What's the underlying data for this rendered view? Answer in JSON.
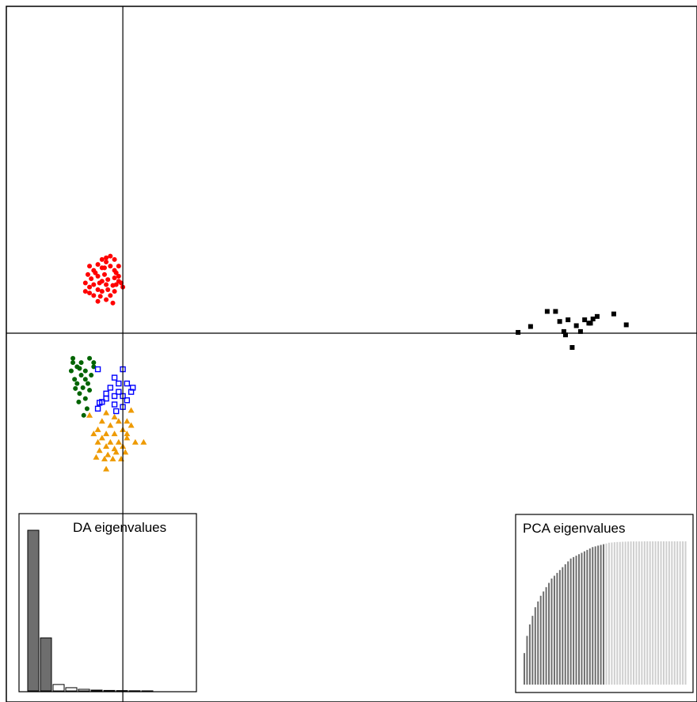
{
  "chart_data": {
    "type": "scatter",
    "title": "",
    "xlabel": "",
    "ylabel": "",
    "xlim": [
      -1.4,
      6.9
    ],
    "ylim": [
      -4.4,
      3.9
    ],
    "axes_cross": [
      0,
      0
    ],
    "colors": {
      "red": "#ff0000",
      "black": "#000000",
      "green": "#006400",
      "blue": "#0000ff",
      "orange": "#ee9a00"
    },
    "groups": [
      {
        "color": "red",
        "marker": "circle",
        "points": [
          [
            -0.4,
            0.8
          ],
          [
            -0.35,
            0.75
          ],
          [
            -0.3,
            0.82
          ],
          [
            -0.25,
            0.78
          ],
          [
            -0.2,
            0.85
          ],
          [
            -0.15,
            0.8
          ],
          [
            -0.1,
            0.75
          ],
          [
            -0.05,
            0.8
          ],
          [
            -0.42,
            0.7
          ],
          [
            -0.38,
            0.65
          ],
          [
            -0.3,
            0.68
          ],
          [
            -0.22,
            0.7
          ],
          [
            -0.18,
            0.64
          ],
          [
            -0.1,
            0.66
          ],
          [
            -0.05,
            0.62
          ],
          [
            -0.35,
            0.58
          ],
          [
            -0.28,
            0.6
          ],
          [
            -0.2,
            0.58
          ],
          [
            -0.12,
            0.57
          ],
          [
            -0.45,
            0.6
          ],
          [
            -0.4,
            0.55
          ],
          [
            -0.3,
            0.52
          ],
          [
            -0.25,
            0.5
          ],
          [
            -0.18,
            0.52
          ],
          [
            -0.1,
            0.5
          ],
          [
            -0.2,
            0.9
          ],
          [
            -0.15,
            0.92
          ],
          [
            -0.25,
            0.88
          ],
          [
            -0.1,
            0.88
          ],
          [
            -0.08,
            0.72
          ],
          [
            -0.35,
            0.45
          ],
          [
            -0.27,
            0.44
          ],
          [
            -0.2,
            0.4
          ],
          [
            -0.4,
            0.48
          ],
          [
            -0.15,
            0.45
          ],
          [
            -0.3,
            0.38
          ],
          [
            -0.45,
            0.5
          ],
          [
            -0.02,
            0.6
          ],
          [
            -0.05,
            0.68
          ],
          [
            0.0,
            0.55
          ],
          [
            -0.22,
            0.78
          ],
          [
            -0.33,
            0.72
          ],
          [
            -0.12,
            0.36
          ],
          [
            -0.25,
            0.62
          ],
          [
            -0.08,
            0.58
          ]
        ]
      },
      {
        "color": "black",
        "marker": "square",
        "points": [
          [
            5.1,
            0.26
          ],
          [
            5.2,
            0.26
          ],
          [
            5.25,
            0.14
          ],
          [
            5.35,
            0.16
          ],
          [
            5.45,
            0.09
          ],
          [
            5.55,
            0.16
          ],
          [
            5.65,
            0.17
          ],
          [
            5.7,
            0.2
          ],
          [
            5.6,
            0.12
          ],
          [
            5.3,
            0.02
          ],
          [
            5.5,
            0.02
          ],
          [
            5.9,
            0.23
          ],
          [
            6.05,
            0.1
          ],
          [
            4.9,
            0.08
          ],
          [
            4.75,
            0.01
          ],
          [
            5.4,
            -0.17
          ],
          [
            5.32,
            -0.02
          ],
          [
            5.62,
            0.12
          ]
        ]
      },
      {
        "color": "green",
        "marker": "circle",
        "points": [
          [
            -0.6,
            -0.35
          ],
          [
            -0.55,
            -0.4
          ],
          [
            -0.5,
            -0.35
          ],
          [
            -0.45,
            -0.45
          ],
          [
            -0.62,
            -0.45
          ],
          [
            -0.5,
            -0.5
          ],
          [
            -0.45,
            -0.55
          ],
          [
            -0.55,
            -0.6
          ],
          [
            -0.48,
            -0.65
          ],
          [
            -0.42,
            -0.6
          ],
          [
            -0.4,
            -0.68
          ],
          [
            -0.52,
            -0.72
          ],
          [
            -0.45,
            -0.78
          ],
          [
            -0.38,
            -0.5
          ],
          [
            -0.35,
            -0.4
          ],
          [
            -0.58,
            -0.55
          ],
          [
            -0.53,
            -0.82
          ],
          [
            -0.43,
            -0.9
          ],
          [
            -0.47,
            -0.98
          ],
          [
            -0.35,
            -0.35
          ],
          [
            -0.6,
            -0.3
          ],
          [
            -0.4,
            -0.3
          ],
          [
            -0.52,
            -0.42
          ],
          [
            -0.57,
            -0.66
          ]
        ]
      },
      {
        "color": "blue",
        "marker": "square-open",
        "points": [
          [
            -0.3,
            -0.43
          ],
          [
            -0.1,
            -0.53
          ],
          [
            0.0,
            -0.43
          ],
          [
            -0.05,
            -0.6
          ],
          [
            -0.15,
            -0.65
          ],
          [
            -0.05,
            -0.7
          ],
          [
            0.0,
            -0.75
          ],
          [
            -0.1,
            -0.75
          ],
          [
            -0.2,
            -0.78
          ],
          [
            -0.1,
            -0.85
          ],
          [
            0.05,
            -0.8
          ],
          [
            0.1,
            -0.7
          ],
          [
            -0.25,
            -0.82
          ],
          [
            0.12,
            -0.65
          ],
          [
            -0.2,
            -0.72
          ],
          [
            0.0,
            -0.88
          ],
          [
            -0.08,
            -0.93
          ],
          [
            -0.28,
            -0.83
          ],
          [
            0.05,
            -0.6
          ],
          [
            -0.3,
            -0.9
          ]
        ]
      },
      {
        "color": "orange",
        "marker": "triangle",
        "points": [
          [
            -0.2,
            -0.95
          ],
          [
            -0.1,
            -1.0
          ],
          [
            -0.25,
            -1.05
          ],
          [
            -0.15,
            -1.1
          ],
          [
            -0.05,
            -1.05
          ],
          [
            -0.3,
            -1.15
          ],
          [
            -0.2,
            -1.2
          ],
          [
            -0.1,
            -1.2
          ],
          [
            0.0,
            -1.15
          ],
          [
            -0.25,
            -1.25
          ],
          [
            -0.15,
            -1.3
          ],
          [
            -0.05,
            -1.3
          ],
          [
            0.05,
            -1.25
          ],
          [
            -0.3,
            -1.3
          ],
          [
            -0.2,
            -1.35
          ],
          [
            -0.1,
            -1.38
          ],
          [
            0.0,
            -1.35
          ],
          [
            -0.28,
            -1.4
          ],
          [
            -0.18,
            -1.45
          ],
          [
            -0.08,
            -1.42
          ],
          [
            0.03,
            -1.42
          ],
          [
            -0.22,
            -1.5
          ],
          [
            -0.12,
            -1.5
          ],
          [
            0.05,
            -1.05
          ],
          [
            0.1,
            -1.1
          ],
          [
            -0.35,
            -1.2
          ],
          [
            0.15,
            -1.3
          ],
          [
            -0.4,
            -0.98
          ],
          [
            0.1,
            -0.92
          ],
          [
            -0.2,
            -1.62
          ],
          [
            0.25,
            -1.3
          ],
          [
            -0.32,
            -1.48
          ],
          [
            -0.02,
            -1.5
          ],
          [
            0.05,
            -1.2
          ]
        ]
      }
    ],
    "inset_da": {
      "label": "DA eigenvalues",
      "values": [
        100,
        33,
        4,
        2,
        1,
        0.5,
        0.3,
        0.2,
        0.1,
        0.05
      ],
      "retained": 2
    },
    "inset_pca": {
      "label": "PCA eigenvalues",
      "retained": 30,
      "values": [
        22,
        34,
        42,
        48,
        54,
        58,
        62,
        65,
        68,
        71,
        74,
        76,
        78,
        80,
        82,
        84,
        86,
        88,
        89,
        90,
        91,
        92,
        93,
        94,
        95,
        96,
        96.5,
        97,
        97.5,
        98,
        98.5,
        99,
        99.2,
        99.4,
        99.5,
        99.6,
        99.7,
        99.8,
        99.85,
        99.9,
        99.92,
        99.94,
        99.95,
        99.96,
        99.97,
        99.98,
        99.99,
        100,
        100,
        100,
        100,
        100,
        100,
        100,
        100,
        100,
        100,
        100,
        100,
        100
      ]
    }
  }
}
